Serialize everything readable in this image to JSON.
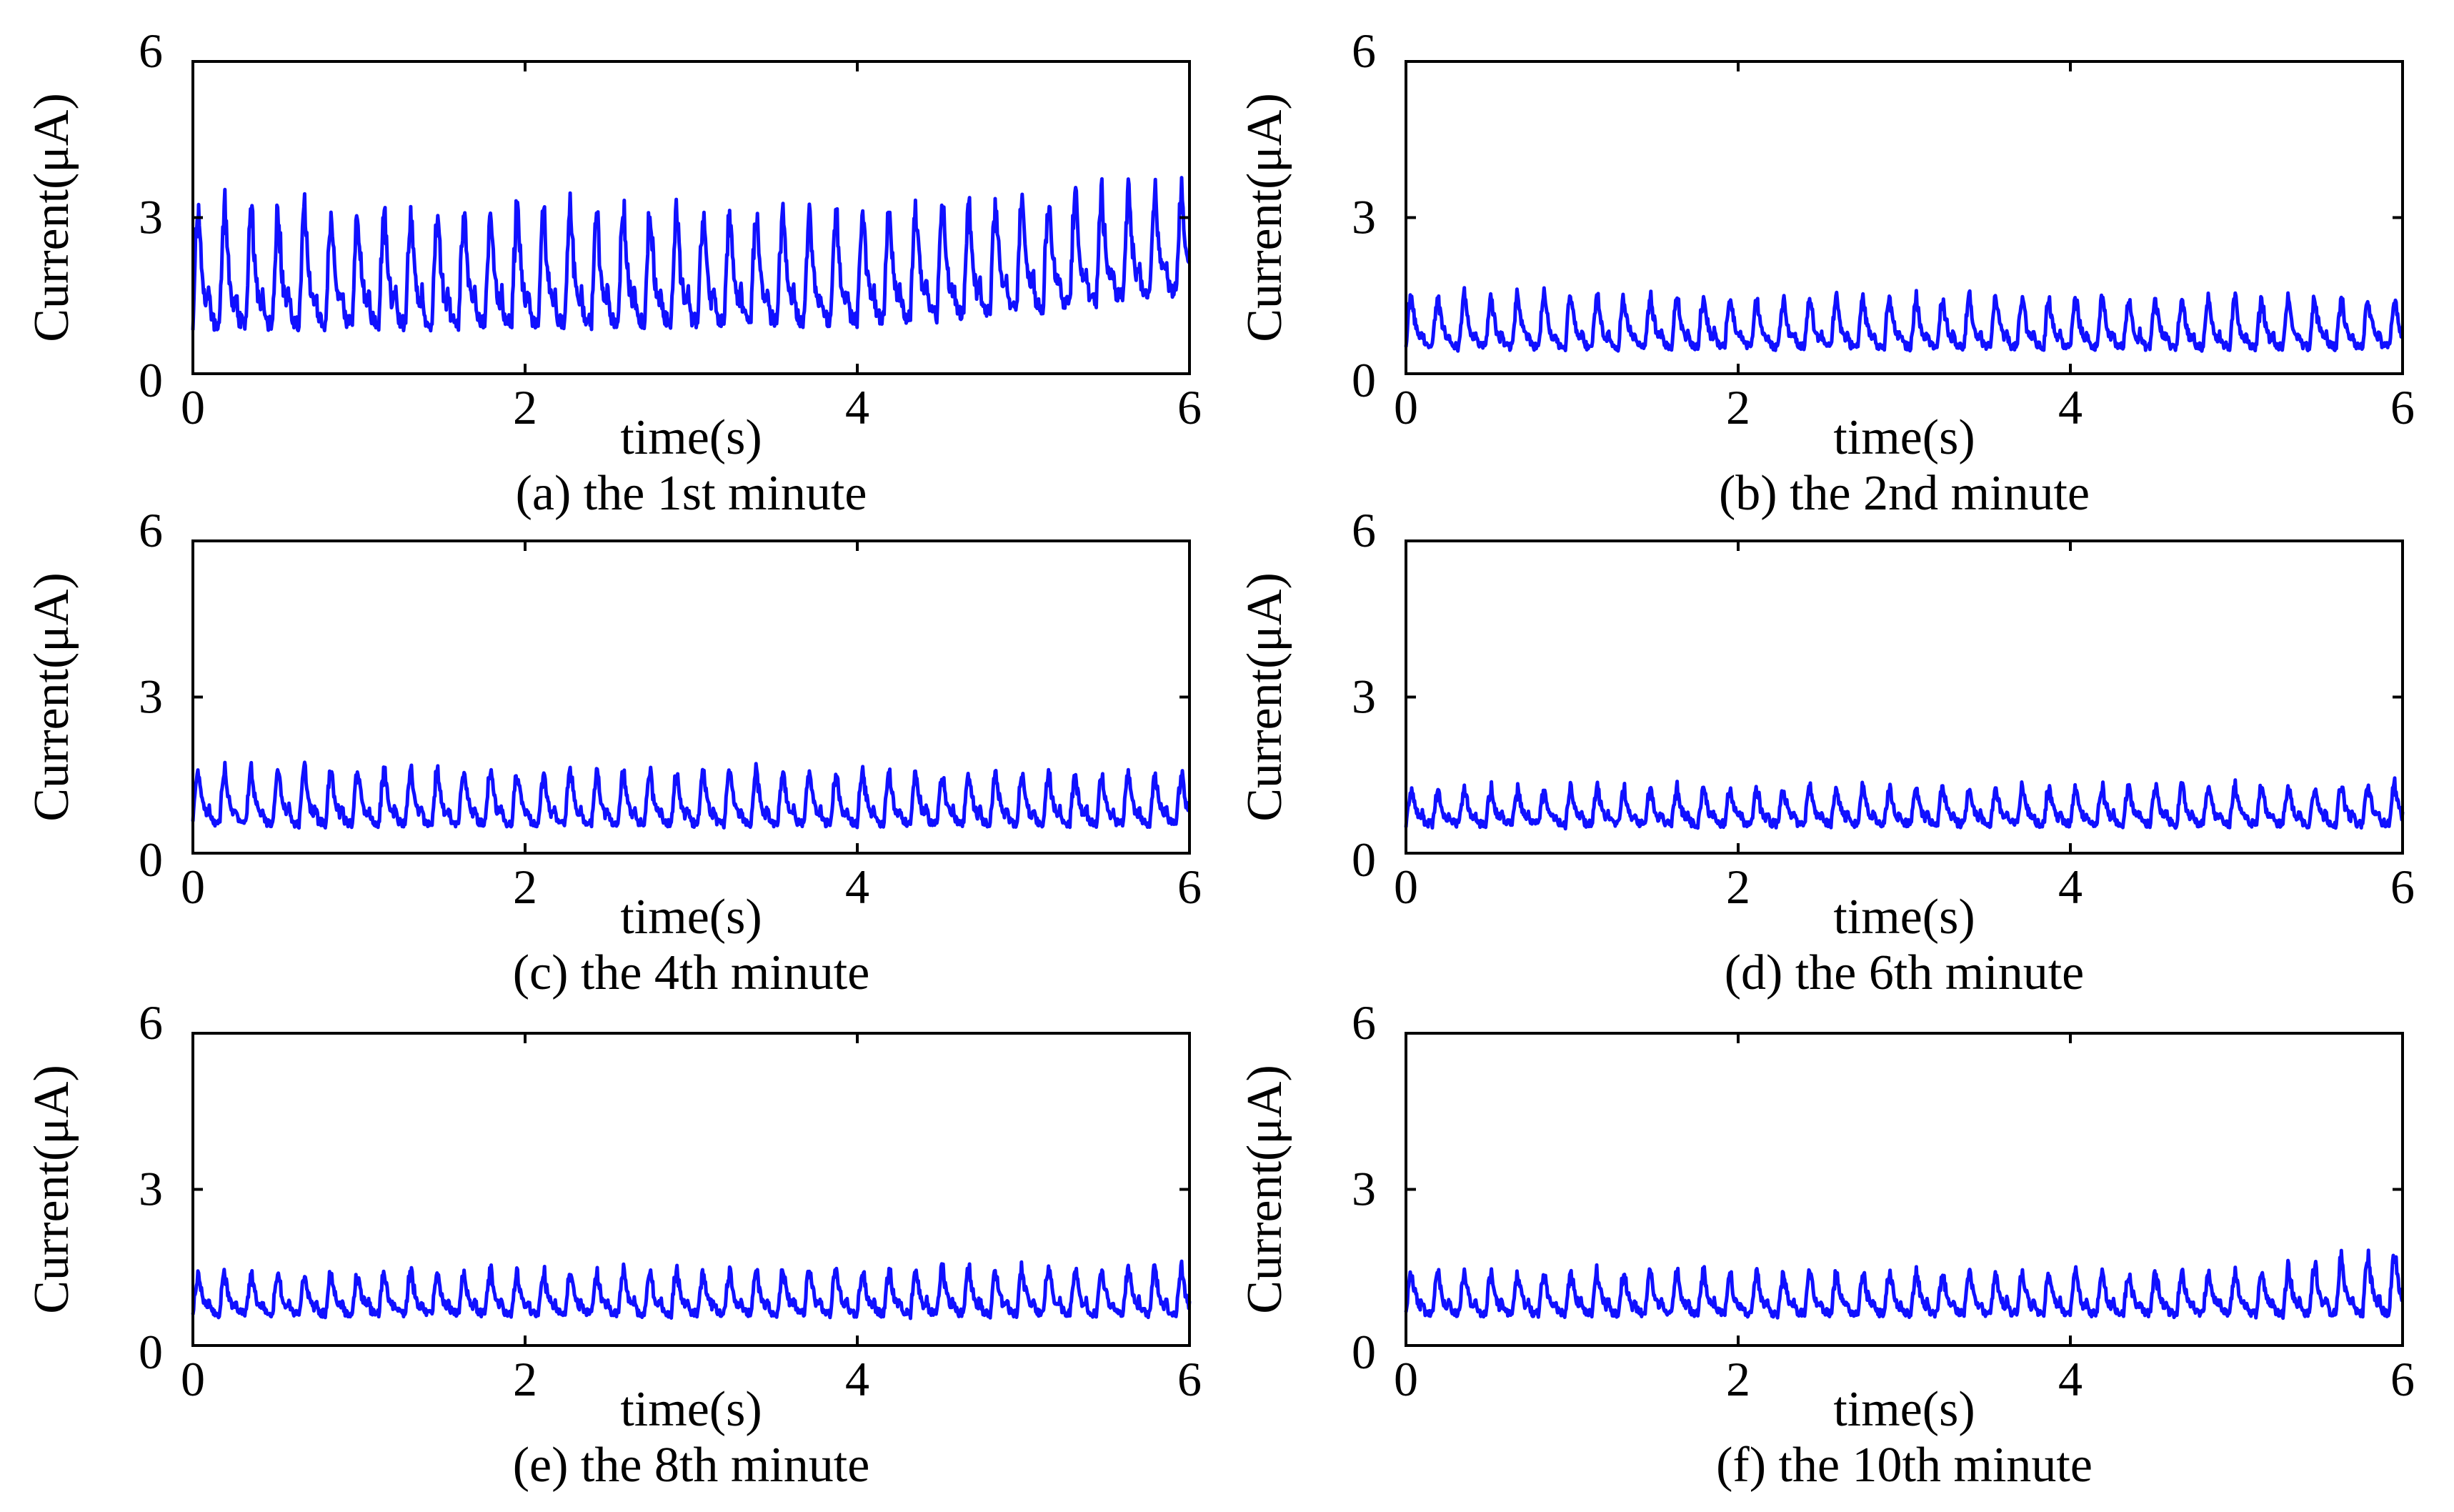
{
  "figure": {
    "colors": {
      "trace": "#1010ff",
      "axes": "#000000",
      "background": "#ffffff"
    }
  },
  "chart_data": [
    {
      "id": "a",
      "type": "line",
      "caption": "(a) the 1st minute",
      "xlabel": "time(s)",
      "ylabel": "Current(μA)",
      "xlim": [
        0,
        6
      ],
      "ylim": [
        0,
        6
      ],
      "xticks": [
        "0",
        "2",
        "4",
        "6"
      ],
      "yticks": [
        "0",
        "3",
        "6"
      ],
      "series": [
        {
          "name": "current",
          "color": "#1010ff",
          "baseline": 0.9,
          "peak": 3.1,
          "period_s": 0.16,
          "noise": 0.15,
          "trend": [
            [
              0,
              0.9,
              3.1
            ],
            [
              4,
              1.0,
              3.1
            ],
            [
              5,
              1.2,
              3.4
            ],
            [
              6,
              1.6,
              3.5
            ]
          ]
        }
      ]
    },
    {
      "id": "b",
      "type": "line",
      "caption": "(b) the 2nd minute",
      "xlabel": "time(s)",
      "ylabel": "Current(μA)",
      "xlim": [
        0,
        6
      ],
      "ylim": [
        0,
        6
      ],
      "xticks": [
        "0",
        "2",
        "4",
        "6"
      ],
      "yticks": [
        "0",
        "3",
        "6"
      ],
      "series": [
        {
          "name": "current",
          "color": "#1010ff",
          "baseline": 0.5,
          "peak": 1.5,
          "period_s": 0.16,
          "noise": 0.08,
          "trend": [
            [
              0,
              0.5,
              1.5
            ],
            [
              6,
              0.5,
              1.4
            ]
          ]
        }
      ]
    },
    {
      "id": "c",
      "type": "line",
      "caption": "(c) the 4th minute",
      "xlabel": "time(s)",
      "ylabel": "Current(μA)",
      "xlim": [
        0,
        6
      ],
      "ylim": [
        0,
        6
      ],
      "xticks": [
        "0",
        "2",
        "4",
        "6"
      ],
      "yticks": [
        "0",
        "3",
        "6"
      ],
      "series": [
        {
          "name": "current",
          "color": "#1010ff",
          "baseline": 0.55,
          "peak": 1.6,
          "period_s": 0.16,
          "noise": 0.08,
          "trend": [
            [
              0,
              0.55,
              1.6
            ],
            [
              6,
              0.55,
              1.5
            ]
          ]
        }
      ]
    },
    {
      "id": "d",
      "type": "line",
      "caption": "(d) the 6th minute",
      "xlabel": "time(s)",
      "ylabel": "Current(μA)",
      "xlim": [
        0,
        6
      ],
      "ylim": [
        0,
        6
      ],
      "xticks": [
        "0",
        "2",
        "4",
        "6"
      ],
      "yticks": [
        "0",
        "3",
        "6"
      ],
      "series": [
        {
          "name": "current",
          "color": "#1010ff",
          "baseline": 0.55,
          "peak": 1.2,
          "period_s": 0.16,
          "noise": 0.08,
          "trend": [
            [
              0,
              0.55,
              1.2
            ],
            [
              6,
              0.55,
              1.3
            ]
          ]
        }
      ]
    },
    {
      "id": "e",
      "type": "line",
      "caption": "(e) the 8th minute",
      "xlabel": "time(s)",
      "ylabel": "Current(μA)",
      "xlim": [
        0,
        6
      ],
      "ylim": [
        0,
        6
      ],
      "xticks": [
        "0",
        "2",
        "4",
        "6"
      ],
      "yticks": [
        "0",
        "3",
        "6"
      ],
      "series": [
        {
          "name": "current",
          "color": "#1010ff",
          "baseline": 0.6,
          "peak": 1.35,
          "period_s": 0.16,
          "noise": 0.08,
          "trend": [
            [
              0,
              0.6,
              1.35
            ],
            [
              6,
              0.6,
              1.5
            ]
          ]
        }
      ]
    },
    {
      "id": "f",
      "type": "line",
      "caption": "(f) the 10th minute",
      "xlabel": "time(s)",
      "ylabel": "Current(μA)",
      "xlim": [
        0,
        6
      ],
      "ylim": [
        0,
        6
      ],
      "xticks": [
        "0",
        "2",
        "4",
        "6"
      ],
      "yticks": [
        "0",
        "3",
        "6"
      ],
      "series": [
        {
          "name": "current",
          "color": "#1010ff",
          "baseline": 0.6,
          "peak": 1.4,
          "period_s": 0.16,
          "noise": 0.08,
          "trend": [
            [
              0,
              0.6,
              1.4
            ],
            [
              5,
              0.6,
              1.4
            ],
            [
              6,
              0.6,
              1.8
            ]
          ]
        }
      ]
    }
  ]
}
